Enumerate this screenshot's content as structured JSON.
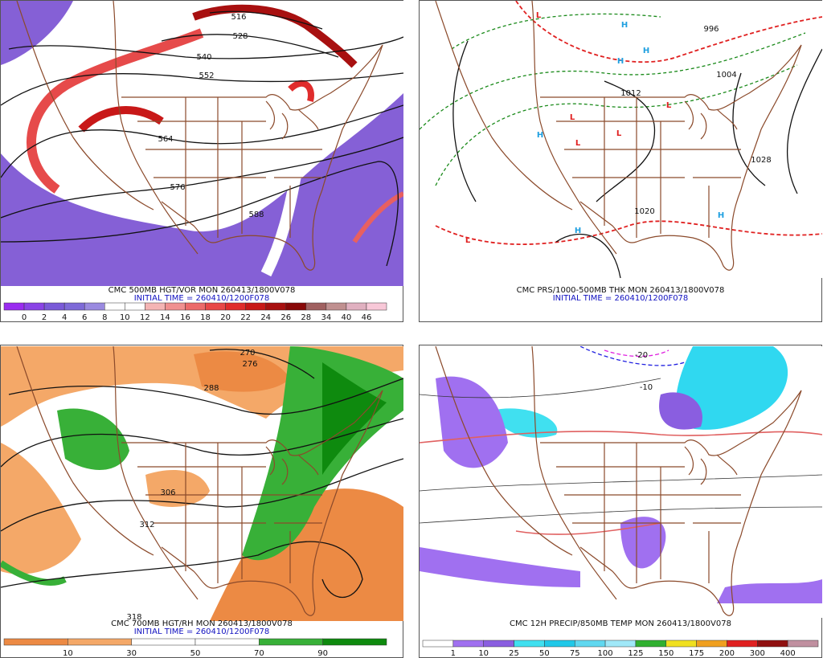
{
  "panels": [
    {
      "title": "CMC 500MB HGT/VOR MON 260413/1800V078",
      "init_time": "INITIAL TIME = 260410/1200F078",
      "colorbar": {
        "labels": [
          0,
          2,
          4,
          6,
          8,
          10,
          12,
          14,
          16,
          18,
          20,
          22,
          24,
          26,
          28,
          34,
          40,
          46
        ],
        "colors": [
          "#9a2cf0",
          "#8a44e6",
          "#7a5ad8",
          "#7e6ad8",
          "#9a8ae0",
          "#ffffff",
          "#ffffff",
          "#f4b4b4",
          "#f09090",
          "#ec6a6a",
          "#e84848",
          "#e02c2c",
          "#c81818",
          "#a81010",
          "#880808",
          "#a06060",
          "#c09090",
          "#e0b0c0",
          "#f8c8d8"
        ]
      },
      "map_labels": [
        "516",
        "528",
        "540",
        "552",
        "564",
        "576",
        "588"
      ]
    },
    {
      "title": "CMC PRS/1000-500MB THK MON 260413/1800V078",
      "init_time": "INITIAL TIME = 260410/1200F078",
      "map_labels": [
        "L",
        "H",
        "H",
        "H",
        "L",
        "H",
        "L",
        "L",
        "L",
        "L",
        "H",
        "H",
        "1004",
        "1012",
        "1020",
        "1028",
        "996"
      ]
    },
    {
      "title": "CMC 700MB HGT/RH MON 260413/1800V078",
      "init_time": "INITIAL TIME = 260410/1200F078",
      "colorbar": {
        "labels": [
          10,
          30,
          50,
          70,
          90
        ],
        "colors": [
          "#ec8a44",
          "#f4a868",
          "#ffffff",
          "#ffffff",
          "#38b038",
          "#0e8a0e"
        ]
      },
      "map_labels": [
        "270",
        "276",
        "288",
        "306",
        "312",
        "318"
      ]
    },
    {
      "title": "CMC 12H PRECIP/850MB TEMP MON 260413/1800V078",
      "colorbar": {
        "labels": [
          1,
          10,
          25,
          50,
          75,
          100,
          125,
          150,
          175,
          200,
          300,
          400
        ],
        "colors": [
          "#ffffff",
          "#a070f0",
          "#8a5ee0",
          "#40e0f0",
          "#20c8e8",
          "#60d8f0",
          "#a0e8f8",
          "#30b030",
          "#f0e020",
          "#f0a020",
          "#e02020",
          "#901010",
          "#c090a0"
        ]
      },
      "map_labels": [
        "-20",
        "-10"
      ]
    }
  ]
}
